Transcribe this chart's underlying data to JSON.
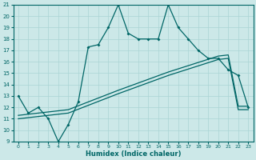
{
  "xlabel": "Humidex (Indice chaleur)",
  "ylabel": "",
  "xlim": [
    -0.5,
    23.5
  ],
  "ylim": [
    9,
    21
  ],
  "yticks": [
    9,
    10,
    11,
    12,
    13,
    14,
    15,
    16,
    17,
    18,
    19,
    20,
    21
  ],
  "xticks": [
    0,
    1,
    2,
    3,
    4,
    5,
    6,
    7,
    8,
    9,
    10,
    11,
    12,
    13,
    14,
    15,
    16,
    17,
    18,
    19,
    20,
    21,
    22,
    23
  ],
  "bg_color": "#cce8e8",
  "line_color": "#006666",
  "grid_color": "#aad4d4",
  "line1_x": [
    0,
    1,
    2,
    3,
    4,
    5,
    6,
    7,
    8,
    9,
    10,
    11,
    12,
    13,
    14,
    15,
    16,
    17,
    18,
    19,
    20,
    21,
    22,
    23
  ],
  "line1_y": [
    13,
    11.5,
    12,
    11,
    9,
    10.5,
    12.5,
    17.3,
    17.5,
    19,
    21,
    18.5,
    18,
    18,
    18,
    21,
    19,
    18,
    17,
    16.3,
    16.3,
    15.3,
    14.8,
    12
  ],
  "line2_x": [
    0,
    5,
    10,
    15,
    20,
    21,
    22,
    23
  ],
  "line2_y": [
    11.0,
    11.5,
    13.2,
    14.8,
    16.2,
    16.3,
    11.8,
    11.8
  ],
  "line3_x": [
    0,
    5,
    10,
    15,
    20,
    21,
    22,
    23
  ],
  "line3_y": [
    11.3,
    11.8,
    13.5,
    15.1,
    16.5,
    16.6,
    12.1,
    12.1
  ]
}
